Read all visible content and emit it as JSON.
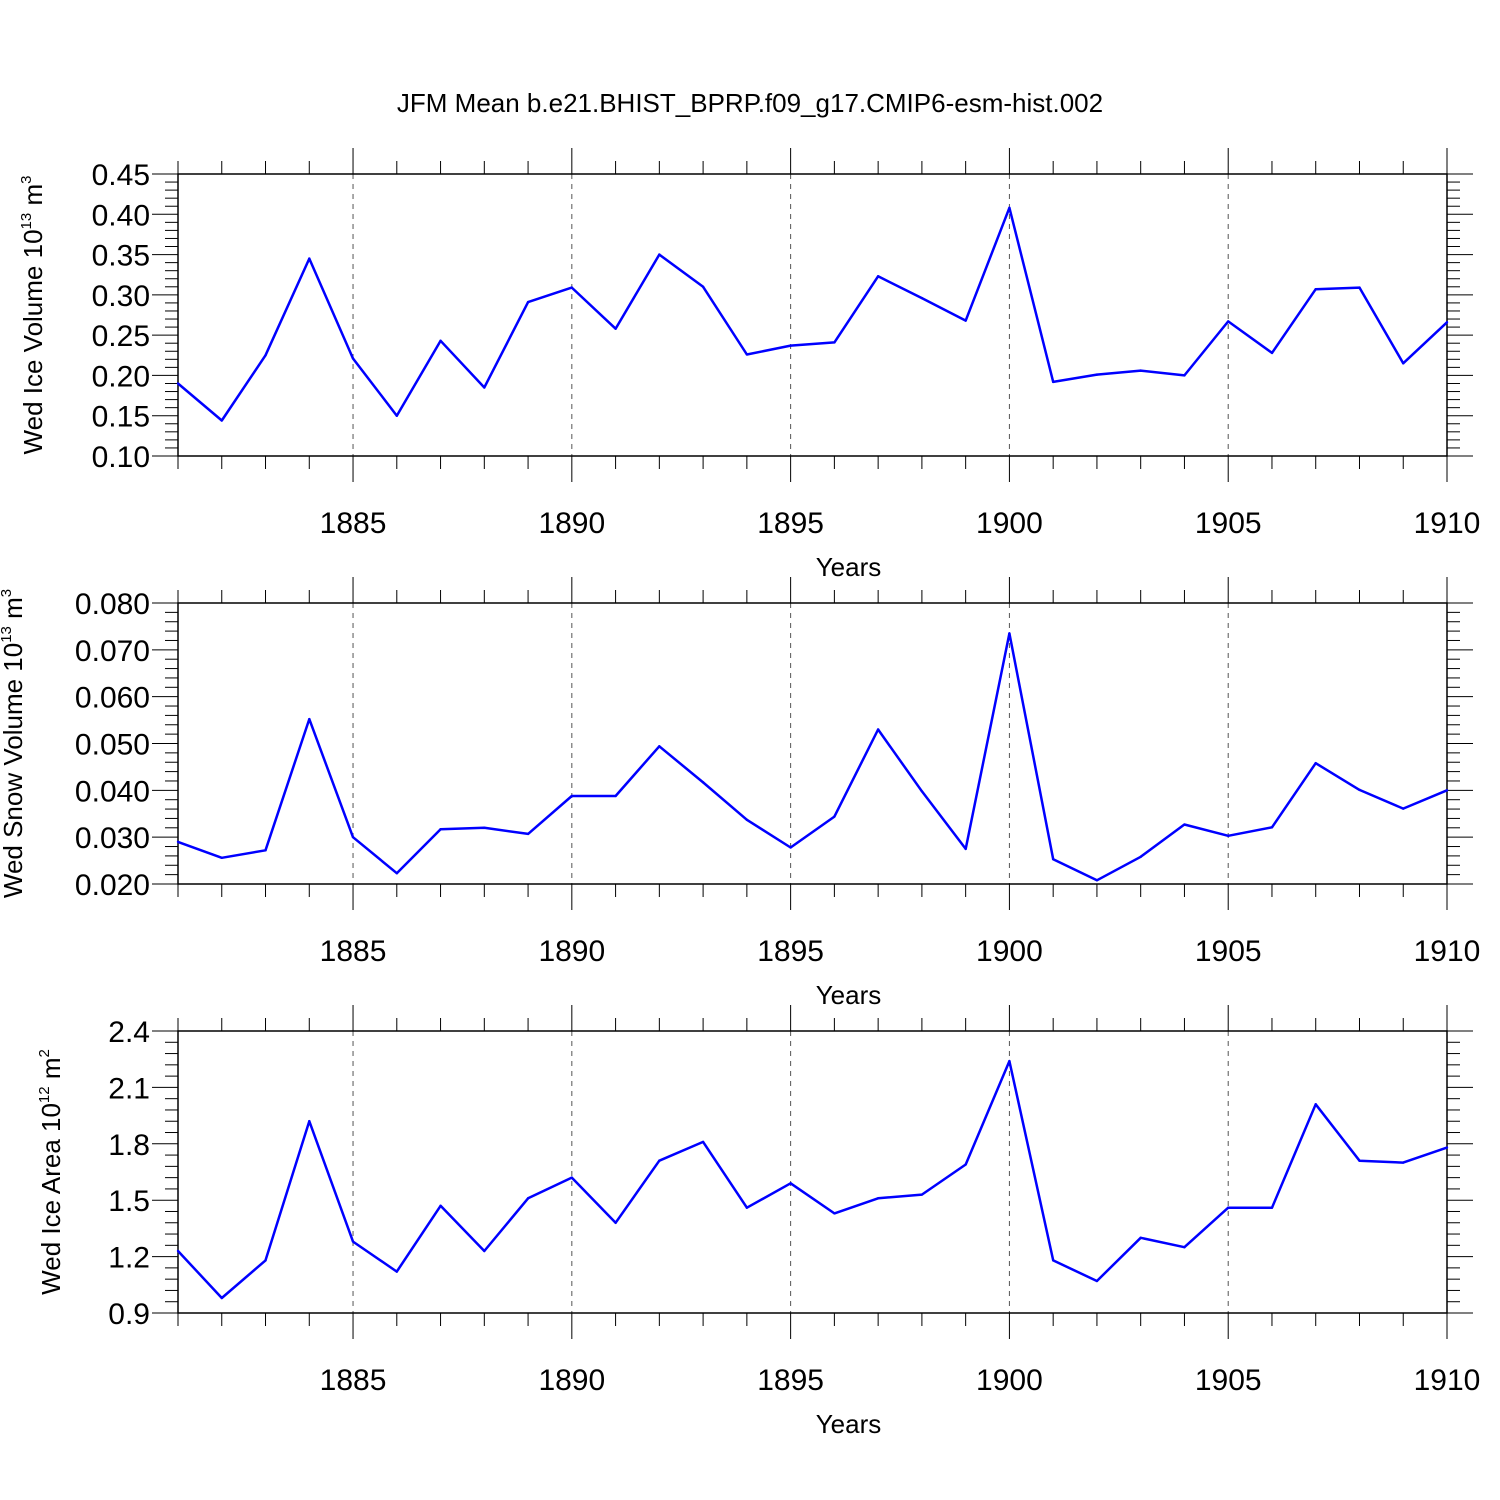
{
  "title": "JFM Mean b.e21.BHIST_BPRP.f09_g17.CMIP6-esm-hist.002",
  "colors": {
    "line": "#0000ff",
    "axis": "#000000",
    "grid": "#555555"
  },
  "chart_data": [
    {
      "type": "line",
      "ylabel_main": "Wed Ice Volume 10",
      "ylabel_exp": "13",
      "ylabel_unit": " m",
      "ylabel_unit_exp": "3",
      "xlabel": "Years",
      "xlim": [
        1881,
        1910
      ],
      "ylim": [
        0.1,
        0.45
      ],
      "yticks": [
        0.1,
        0.15,
        0.2,
        0.25,
        0.3,
        0.35,
        0.4,
        0.45
      ],
      "ytick_labels": [
        "0.10",
        "0.15",
        "0.20",
        "0.25",
        "0.30",
        "0.35",
        "0.40",
        "0.45"
      ],
      "xticks": [
        1885,
        1890,
        1895,
        1900,
        1905,
        1910
      ],
      "xtick_labels": [
        "1885",
        "1890",
        "1895",
        "1900",
        "1905",
        "1910"
      ],
      "grid": "vertical dashed at major x ticks",
      "x": [
        1881,
        1882,
        1883,
        1884,
        1885,
        1886,
        1887,
        1888,
        1889,
        1890,
        1891,
        1892,
        1893,
        1894,
        1895,
        1896,
        1897,
        1898,
        1899,
        1900,
        1901,
        1902,
        1903,
        1904,
        1905,
        1906,
        1907,
        1908,
        1909,
        1910
      ],
      "values": [
        0.19,
        0.144,
        0.225,
        0.345,
        0.221,
        0.15,
        0.243,
        0.185,
        0.291,
        0.309,
        0.258,
        0.35,
        0.31,
        0.226,
        0.237,
        0.241,
        0.323,
        0.296,
        0.268,
        0.408,
        0.192,
        0.201,
        0.206,
        0.2,
        0.267,
        0.228,
        0.307,
        0.309,
        0.215,
        0.266
      ]
    },
    {
      "type": "line",
      "ylabel_main": "Wed Snow Volume 10",
      "ylabel_exp": "13",
      "ylabel_unit": " m",
      "ylabel_unit_exp": "3",
      "xlabel": "Years",
      "xlim": [
        1881,
        1910
      ],
      "ylim": [
        0.02,
        0.08
      ],
      "yticks": [
        0.02,
        0.03,
        0.04,
        0.05,
        0.06,
        0.07,
        0.08
      ],
      "ytick_labels": [
        "0.020",
        "0.030",
        "0.040",
        "0.050",
        "0.060",
        "0.070",
        "0.080"
      ],
      "xticks": [
        1885,
        1890,
        1895,
        1900,
        1905,
        1910
      ],
      "xtick_labels": [
        "1885",
        "1890",
        "1895",
        "1900",
        "1905",
        "1910"
      ],
      "grid": "vertical dashed at major x ticks",
      "x": [
        1881,
        1882,
        1883,
        1884,
        1885,
        1886,
        1887,
        1888,
        1889,
        1890,
        1891,
        1892,
        1893,
        1894,
        1895,
        1896,
        1897,
        1898,
        1899,
        1900,
        1901,
        1902,
        1903,
        1904,
        1905,
        1906,
        1907,
        1908,
        1909,
        1910
      ],
      "values": [
        0.029,
        0.0256,
        0.0272,
        0.0552,
        0.03,
        0.0223,
        0.0317,
        0.032,
        0.0307,
        0.0388,
        0.0388,
        0.0494,
        0.0417,
        0.0337,
        0.0278,
        0.0344,
        0.053,
        0.0398,
        0.0275,
        0.0735,
        0.0253,
        0.0208,
        0.0258,
        0.0327,
        0.0303,
        0.0321,
        0.0458,
        0.0401,
        0.0361,
        0.04
      ]
    },
    {
      "type": "line",
      "ylabel_main": "Wed Ice Area 10",
      "ylabel_exp": "12",
      "ylabel_unit": " m",
      "ylabel_unit_exp": "2",
      "xlabel": "Years",
      "xlim": [
        1881,
        1910
      ],
      "ylim": [
        0.9,
        2.4
      ],
      "yticks": [
        0.9,
        1.2,
        1.5,
        1.8,
        2.1,
        2.4
      ],
      "ytick_labels": [
        "0.9",
        "1.2",
        "1.5",
        "1.8",
        "2.1",
        "2.4"
      ],
      "xticks": [
        1885,
        1890,
        1895,
        1900,
        1905,
        1910
      ],
      "xtick_labels": [
        "1885",
        "1890",
        "1895",
        "1900",
        "1905",
        "1910"
      ],
      "grid": "vertical dashed at major x ticks",
      "x": [
        1881,
        1882,
        1883,
        1884,
        1885,
        1886,
        1887,
        1888,
        1889,
        1890,
        1891,
        1892,
        1893,
        1894,
        1895,
        1896,
        1897,
        1898,
        1899,
        1900,
        1901,
        1902,
        1903,
        1904,
        1905,
        1906,
        1907,
        1908,
        1909,
        1910
      ],
      "values": [
        1.23,
        0.98,
        1.18,
        1.92,
        1.28,
        1.12,
        1.47,
        1.23,
        1.51,
        1.62,
        1.38,
        1.71,
        1.81,
        1.46,
        1.59,
        1.43,
        1.51,
        1.53,
        1.69,
        2.24,
        1.18,
        1.07,
        1.3,
        1.25,
        1.46,
        1.46,
        2.01,
        1.71,
        1.7,
        1.78
      ]
    }
  ]
}
